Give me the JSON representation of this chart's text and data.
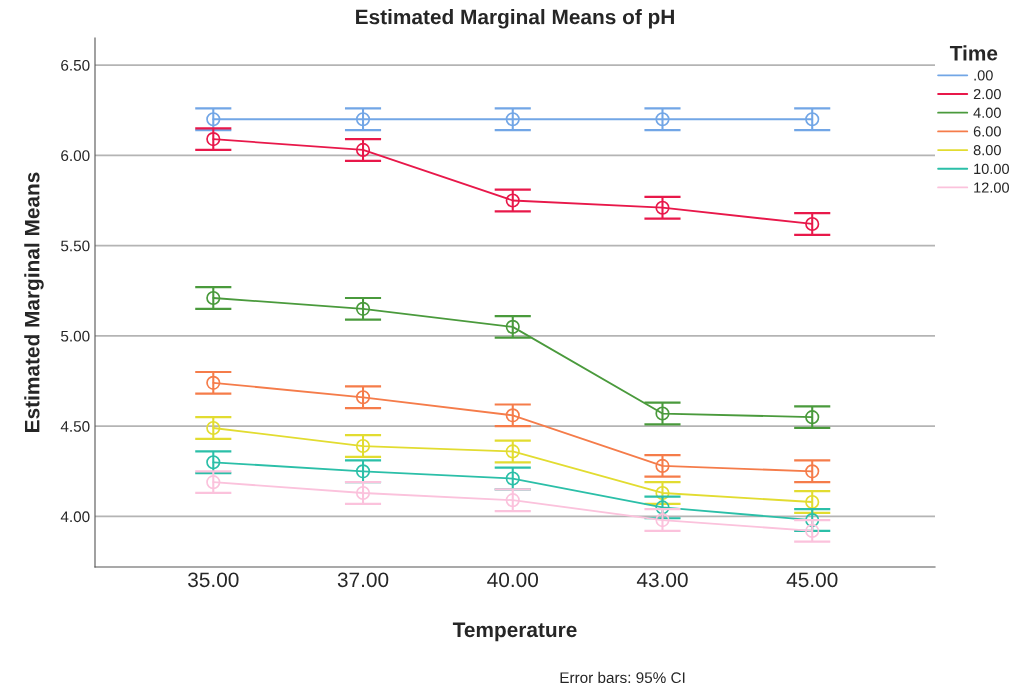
{
  "chart_data": {
    "type": "line",
    "title": "Estimated Marginal Means of pH",
    "xlabel": "Temperature",
    "ylabel": "Estimated Marginal Means",
    "legend_title": "Time",
    "categories": [
      "35.00",
      "37.00",
      "40.00",
      "43.00",
      "45.00"
    ],
    "series": [
      {
        "name": ".00",
        "color": "#72a6e6",
        "values": [
          6.2,
          6.2,
          6.2,
          6.2,
          6.2
        ],
        "errors": [
          0.06,
          0.06,
          0.06,
          0.06,
          0.06
        ]
      },
      {
        "name": "2.00",
        "color": "#e8184a",
        "values": [
          6.09,
          6.03,
          5.75,
          5.71,
          5.62
        ],
        "errors": [
          0.06,
          0.06,
          0.06,
          0.06,
          0.06
        ]
      },
      {
        "name": "4.00",
        "color": "#4a9a3c",
        "values": [
          5.21,
          5.15,
          5.05,
          4.57,
          4.55
        ],
        "errors": [
          0.06,
          0.06,
          0.06,
          0.06,
          0.06
        ]
      },
      {
        "name": "6.00",
        "color": "#f57c4a",
        "values": [
          4.74,
          4.66,
          4.56,
          4.28,
          4.25
        ],
        "errors": [
          0.06,
          0.06,
          0.06,
          0.06,
          0.06
        ]
      },
      {
        "name": "8.00",
        "color": "#e2dc30",
        "values": [
          4.49,
          4.39,
          4.36,
          4.13,
          4.08
        ],
        "errors": [
          0.06,
          0.06,
          0.06,
          0.06,
          0.06
        ]
      },
      {
        "name": "10.00",
        "color": "#2bbfa8",
        "values": [
          4.3,
          4.25,
          4.21,
          4.05,
          3.98
        ],
        "errors": [
          0.06,
          0.06,
          0.06,
          0.06,
          0.06
        ]
      },
      {
        "name": "12.00",
        "color": "#fbc2dc",
        "values": [
          4.19,
          4.13,
          4.09,
          3.98,
          3.92
        ],
        "errors": [
          0.06,
          0.06,
          0.06,
          0.06,
          0.06
        ]
      }
    ],
    "ylim": [
      3.72,
      6.65
    ],
    "yticks": [
      {
        "value": 4.0,
        "label": "4.00"
      },
      {
        "value": 4.5,
        "label": "4.50"
      },
      {
        "value": 5.0,
        "label": "5.00"
      },
      {
        "value": 5.5,
        "label": "5.50"
      },
      {
        "value": 6.0,
        "label": "6.00"
      },
      {
        "value": 6.5,
        "label": "6.50"
      }
    ],
    "grid": "y",
    "legend": "top right",
    "marker": "circle",
    "line_style": "solid",
    "annotations": [
      "Error bars: 95% CI"
    ]
  }
}
